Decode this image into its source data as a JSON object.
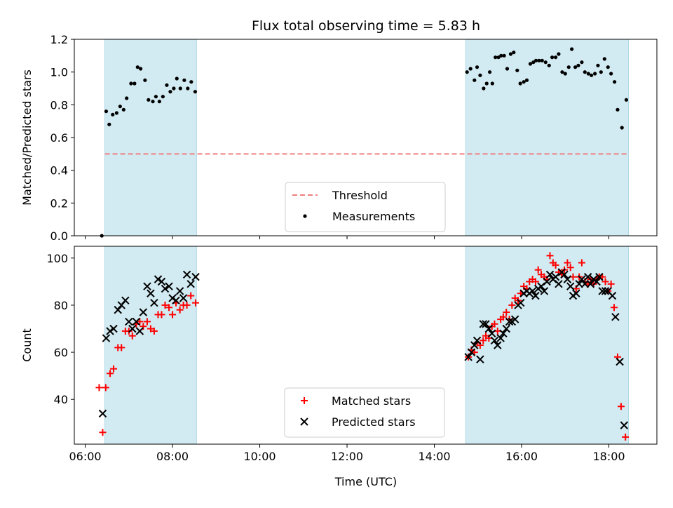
{
  "figure": {
    "title": "Flux total observing time = 5.83 h",
    "xlabel": "Time (UTC)"
  },
  "colors": {
    "span_fill": "#add8e6",
    "threshold": "#f08080",
    "measurement": "#000000",
    "matched": "#ff0000",
    "predicted": "#000000"
  },
  "chart_data": [
    {
      "type": "scatter",
      "panel": "top",
      "ylabel": "Matched/Predicted stars",
      "xlim_hours": [
        5.75,
        19.1
      ],
      "ylim": [
        0,
        1.2
      ],
      "x_ticks_hours": [
        6,
        8,
        10,
        12,
        14,
        16,
        18
      ],
      "y_ticks": [
        0.0,
        0.2,
        0.4,
        0.6,
        0.8,
        1.0,
        1.2
      ],
      "y_tick_labels": [
        "0.0",
        "0.2",
        "0.4",
        "0.6",
        "0.8",
        "1.0",
        "1.2"
      ],
      "shaded_spans_hours": [
        [
          6.45,
          8.55
        ],
        [
          14.72,
          18.45
        ]
      ],
      "threshold": {
        "name": "Threshold",
        "value": 0.5,
        "x_range_hours": [
          6.45,
          18.45
        ],
        "style": "dashed"
      },
      "legend": {
        "placement": "lower-center",
        "entries": [
          "Threshold",
          "Measurements"
        ]
      },
      "series": [
        {
          "name": "Measurements",
          "marker": "dot",
          "points": [
            [
              6.38,
              0.0
            ],
            [
              6.48,
              0.76
            ],
            [
              6.55,
              0.68
            ],
            [
              6.63,
              0.74
            ],
            [
              6.72,
              0.75
            ],
            [
              6.8,
              0.79
            ],
            [
              6.88,
              0.77
            ],
            [
              6.95,
              0.84
            ],
            [
              7.05,
              0.93
            ],
            [
              7.13,
              0.93
            ],
            [
              7.2,
              1.03
            ],
            [
              7.27,
              1.02
            ],
            [
              7.37,
              0.95
            ],
            [
              7.45,
              0.83
            ],
            [
              7.55,
              0.82
            ],
            [
              7.62,
              0.85
            ],
            [
              7.7,
              0.82
            ],
            [
              7.78,
              0.85
            ],
            [
              7.87,
              0.92
            ],
            [
              7.95,
              0.88
            ],
            [
              8.03,
              0.9
            ],
            [
              8.1,
              0.96
            ],
            [
              8.18,
              0.9
            ],
            [
              8.27,
              0.95
            ],
            [
              8.35,
              0.9
            ],
            [
              8.43,
              0.94
            ],
            [
              8.52,
              0.88
            ],
            [
              14.75,
              1.0
            ],
            [
              14.83,
              1.02
            ],
            [
              14.92,
              0.95
            ],
            [
              14.98,
              1.03
            ],
            [
              15.05,
              0.98
            ],
            [
              15.13,
              0.9
            ],
            [
              15.2,
              0.93
            ],
            [
              15.27,
              1.0
            ],
            [
              15.33,
              0.93
            ],
            [
              15.4,
              1.09
            ],
            [
              15.47,
              1.09
            ],
            [
              15.53,
              1.1
            ],
            [
              15.6,
              1.1
            ],
            [
              15.67,
              1.02
            ],
            [
              15.75,
              1.11
            ],
            [
              15.82,
              1.12
            ],
            [
              15.9,
              1.01
            ],
            [
              15.97,
              0.93
            ],
            [
              16.05,
              0.94
            ],
            [
              16.12,
              0.95
            ],
            [
              16.2,
              1.05
            ],
            [
              16.27,
              1.06
            ],
            [
              16.33,
              1.07
            ],
            [
              16.4,
              1.07
            ],
            [
              16.47,
              1.07
            ],
            [
              16.55,
              1.06
            ],
            [
              16.63,
              1.04
            ],
            [
              16.7,
              1.09
            ],
            [
              16.78,
              1.09
            ],
            [
              16.85,
              1.11
            ],
            [
              16.93,
              1.0
            ],
            [
              17.0,
              0.99
            ],
            [
              17.08,
              1.03
            ],
            [
              17.15,
              1.14
            ],
            [
              17.23,
              1.03
            ],
            [
              17.3,
              1.04
            ],
            [
              17.38,
              1.06
            ],
            [
              17.45,
              1.0
            ],
            [
              17.53,
              0.99
            ],
            [
              17.6,
              0.98
            ],
            [
              17.68,
              0.99
            ],
            [
              17.75,
              1.04
            ],
            [
              17.82,
              1.0
            ],
            [
              17.9,
              1.08
            ],
            [
              17.98,
              1.03
            ],
            [
              18.05,
              0.99
            ],
            [
              18.13,
              0.94
            ],
            [
              18.2,
              0.77
            ],
            [
              18.3,
              0.66
            ],
            [
              18.4,
              0.83
            ]
          ]
        }
      ]
    },
    {
      "type": "scatter",
      "panel": "bottom",
      "ylabel": "Count",
      "xlabel": "Time (UTC)",
      "xlim_hours": [
        5.75,
        19.1
      ],
      "ylim": [
        21,
        105
      ],
      "x_ticks_hours": [
        6,
        8,
        10,
        12,
        14,
        16,
        18
      ],
      "x_tick_labels": [
        "06:00",
        "08:00",
        "10:00",
        "12:00",
        "14:00",
        "16:00",
        "18:00"
      ],
      "y_ticks": [
        40,
        60,
        80,
        100
      ],
      "y_tick_labels": [
        "40",
        "60",
        "80",
        "100"
      ],
      "shaded_spans_hours": [
        [
          6.45,
          8.55
        ],
        [
          14.72,
          18.45
        ]
      ],
      "legend": {
        "placement": "lower-center",
        "entries": [
          "Matched stars",
          "Predicted stars"
        ]
      },
      "series": [
        {
          "name": "Matched stars",
          "marker": "plus",
          "points": [
            [
              6.32,
              45
            ],
            [
              6.4,
              26
            ],
            [
              6.47,
              45
            ],
            [
              6.57,
              51
            ],
            [
              6.65,
              53
            ],
            [
              6.75,
              62
            ],
            [
              6.83,
              62
            ],
            [
              6.92,
              69
            ],
            [
              7.0,
              69
            ],
            [
              7.08,
              67
            ],
            [
              7.17,
              72
            ],
            [
              7.25,
              73
            ],
            [
              7.33,
              71
            ],
            [
              7.42,
              73
            ],
            [
              7.5,
              70
            ],
            [
              7.58,
              69
            ],
            [
              7.67,
              76
            ],
            [
              7.75,
              76
            ],
            [
              7.83,
              80
            ],
            [
              7.92,
              79
            ],
            [
              8.0,
              76
            ],
            [
              8.08,
              81
            ],
            [
              8.17,
              78
            ],
            [
              8.25,
              80
            ],
            [
              8.33,
              80
            ],
            [
              8.42,
              84
            ],
            [
              8.53,
              81
            ],
            [
              14.78,
              58
            ],
            [
              14.85,
              61
            ],
            [
              14.92,
              60
            ],
            [
              14.98,
              64
            ],
            [
              15.05,
              63
            ],
            [
              15.12,
              65
            ],
            [
              15.18,
              67
            ],
            [
              15.25,
              66
            ],
            [
              15.32,
              71
            ],
            [
              15.38,
              72
            ],
            [
              15.45,
              69
            ],
            [
              15.52,
              74
            ],
            [
              15.58,
              75
            ],
            [
              15.65,
              77
            ],
            [
              15.72,
              74
            ],
            [
              15.78,
              80
            ],
            [
              15.85,
              83
            ],
            [
              15.92,
              82
            ],
            [
              15.98,
              85
            ],
            [
              16.05,
              88
            ],
            [
              16.12,
              87
            ],
            [
              16.18,
              90
            ],
            [
              16.25,
              91
            ],
            [
              16.32,
              90
            ],
            [
              16.38,
              95
            ],
            [
              16.45,
              93
            ],
            [
              16.52,
              92
            ],
            [
              16.58,
              91
            ],
            [
              16.65,
              101
            ],
            [
              16.72,
              98
            ],
            [
              16.78,
              97
            ],
            [
              16.85,
              94
            ],
            [
              16.92,
              93
            ],
            [
              16.98,
              95
            ],
            [
              17.05,
              98
            ],
            [
              17.12,
              96
            ],
            [
              17.18,
              92
            ],
            [
              17.25,
              87
            ],
            [
              17.32,
              92
            ],
            [
              17.38,
              98
            ],
            [
              17.45,
              90
            ],
            [
              17.52,
              89
            ],
            [
              17.58,
              91
            ],
            [
              17.65,
              89
            ],
            [
              17.72,
              91
            ],
            [
              17.78,
              92
            ],
            [
              17.85,
              92
            ],
            [
              17.92,
              90
            ],
            [
              17.98,
              86
            ],
            [
              18.05,
              89
            ],
            [
              18.12,
              79
            ],
            [
              18.2,
              58
            ],
            [
              18.28,
              37
            ],
            [
              18.38,
              24
            ]
          ]
        },
        {
          "name": "Predicted stars",
          "marker": "x",
          "points": [
            [
              6.4,
              34
            ],
            [
              6.48,
              66
            ],
            [
              6.57,
              69
            ],
            [
              6.65,
              70
            ],
            [
              6.75,
              78
            ],
            [
              6.83,
              80
            ],
            [
              6.92,
              82
            ],
            [
              7.0,
              73
            ],
            [
              7.08,
              70
            ],
            [
              7.17,
              73
            ],
            [
              7.25,
              69
            ],
            [
              7.33,
              77
            ],
            [
              7.42,
              88
            ],
            [
              7.5,
              85
            ],
            [
              7.58,
              81
            ],
            [
              7.67,
              91
            ],
            [
              7.75,
              90
            ],
            [
              7.83,
              87
            ],
            [
              7.92,
              88
            ],
            [
              8.0,
              83
            ],
            [
              8.08,
              82
            ],
            [
              8.17,
              86
            ],
            [
              8.25,
              83
            ],
            [
              8.33,
              93
            ],
            [
              8.42,
              89
            ],
            [
              8.53,
              92
            ],
            [
              14.78,
              58
            ],
            [
              14.85,
              60
            ],
            [
              14.92,
              63
            ],
            [
              14.98,
              65
            ],
            [
              15.05,
              57
            ],
            [
              15.12,
              72
            ],
            [
              15.18,
              72
            ],
            [
              15.25,
              70
            ],
            [
              15.32,
              68
            ],
            [
              15.38,
              65
            ],
            [
              15.45,
              63
            ],
            [
              15.52,
              66
            ],
            [
              15.58,
              68
            ],
            [
              15.65,
              70
            ],
            [
              15.72,
              73
            ],
            [
              15.78,
              73
            ],
            [
              15.85,
              74
            ],
            [
              15.92,
              80
            ],
            [
              15.98,
              81
            ],
            [
              16.05,
              85
            ],
            [
              16.12,
              86
            ],
            [
              16.18,
              85
            ],
            [
              16.25,
              86
            ],
            [
              16.32,
              84
            ],
            [
              16.38,
              87
            ],
            [
              16.45,
              88
            ],
            [
              16.52,
              86
            ],
            [
              16.58,
              90
            ],
            [
              16.65,
              93
            ],
            [
              16.72,
              91
            ],
            [
              16.78,
              92
            ],
            [
              16.85,
              89
            ],
            [
              16.92,
              94
            ],
            [
              16.98,
              93
            ],
            [
              17.05,
              91
            ],
            [
              17.12,
              88
            ],
            [
              17.18,
              84
            ],
            [
              17.25,
              85
            ],
            [
              17.32,
              89
            ],
            [
              17.38,
              91
            ],
            [
              17.45,
              89
            ],
            [
              17.52,
              92
            ],
            [
              17.58,
              89
            ],
            [
              17.65,
              91
            ],
            [
              17.72,
              90
            ],
            [
              17.78,
              92
            ],
            [
              17.85,
              86
            ],
            [
              17.92,
              86
            ],
            [
              17.98,
              86
            ],
            [
              18.08,
              84
            ],
            [
              18.15,
              75
            ],
            [
              18.25,
              56
            ],
            [
              18.35,
              29
            ]
          ]
        }
      ]
    }
  ]
}
